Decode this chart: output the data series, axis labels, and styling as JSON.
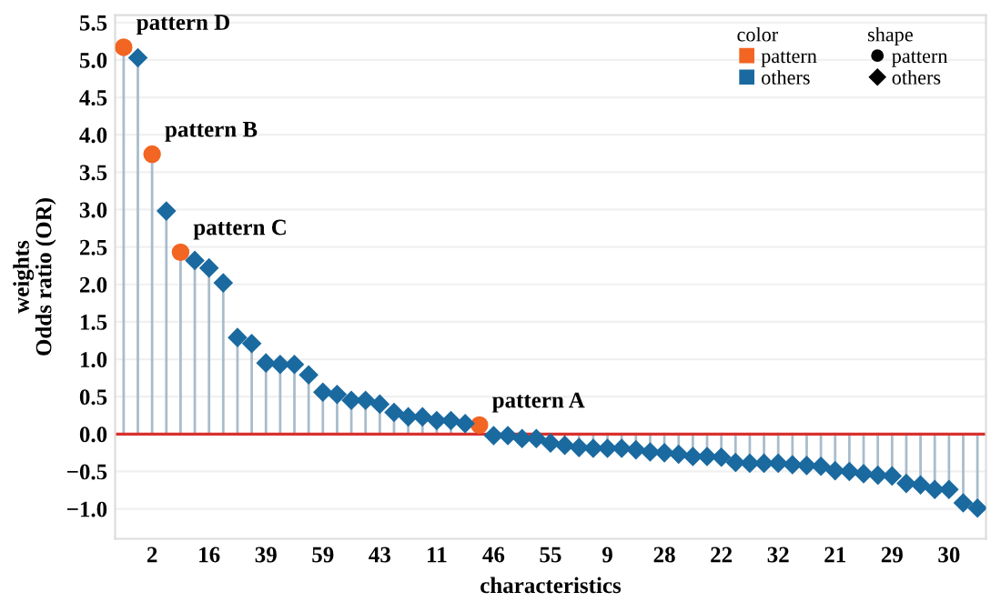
{
  "chart_data": {
    "type": "lollipop",
    "xlabel": "characteristics",
    "ylabel": "weights\nOdds ratio (OR)",
    "legend_title": [
      "color",
      "shape"
    ],
    "legend": "top right",
    "grid": "y",
    "categories": [
      null,
      null,
      "2",
      null,
      null,
      null,
      "16",
      null,
      null,
      null,
      "39",
      null,
      null,
      null,
      "59",
      null,
      null,
      null,
      "43",
      null,
      null,
      null,
      "11",
      null,
      null,
      null,
      "46",
      null,
      null,
      null,
      "55",
      null,
      null,
      null,
      "9",
      null,
      null,
      null,
      "28",
      null,
      null,
      null,
      "22",
      null,
      null,
      null,
      "32",
      null,
      null,
      null,
      "21",
      null,
      null,
      null,
      "29",
      null,
      null,
      null,
      "30",
      null,
      null
    ],
    "ylim": [
      -1.4,
      5.6
    ],
    "yticks": [
      {
        "value": -1,
        "label": "−1.0"
      },
      {
        "value": -0.5,
        "label": "−0.5"
      },
      {
        "value": 0,
        "label": "0.0"
      },
      {
        "value": 0.5,
        "label": "0.5"
      },
      {
        "value": 1,
        "label": "1.0"
      },
      {
        "value": 1.5,
        "label": "1.5"
      },
      {
        "value": 2,
        "label": "2.0"
      },
      {
        "value": 2.5,
        "label": "2.5"
      },
      {
        "value": 3,
        "label": "3.0"
      },
      {
        "value": 3.5,
        "label": "3.5"
      },
      {
        "value": 4,
        "label": "4.0"
      },
      {
        "value": 4.5,
        "label": "4.5"
      },
      {
        "value": 5,
        "label": "5.0"
      },
      {
        "value": 5.5,
        "label": "5.5"
      }
    ],
    "ref_lines": [
      {
        "axis": "y",
        "value": 0,
        "color": "#d9302c"
      }
    ],
    "series": [
      {
        "name": "pattern",
        "color": "#f26522",
        "marker": "circle",
        "values": [
          5.17,
          null,
          3.74,
          null,
          2.43,
          null,
          null,
          null,
          null,
          null,
          null,
          null,
          null,
          null,
          null,
          null,
          null,
          null,
          null,
          null,
          null,
          null,
          null,
          null,
          null,
          0.12,
          null,
          null,
          null,
          null,
          null,
          null,
          null,
          null,
          null,
          null,
          null,
          null,
          null,
          null,
          null,
          null,
          null,
          null,
          null,
          null,
          null,
          null,
          null,
          null,
          null,
          null,
          null,
          null,
          null,
          null,
          null,
          null,
          null,
          null,
          null
        ],
        "value_labels": [
          "pattern D",
          null,
          "pattern B",
          null,
          "pattern C",
          null,
          null,
          null,
          null,
          null,
          null,
          null,
          null,
          null,
          null,
          null,
          null,
          null,
          null,
          null,
          null,
          null,
          null,
          null,
          null,
          "pattern A",
          null,
          null,
          null,
          null,
          null,
          null,
          null,
          null,
          null,
          null,
          null,
          null,
          null,
          null,
          null,
          null,
          null,
          null,
          null,
          null,
          null,
          null,
          null,
          null,
          null,
          null,
          null,
          null,
          null,
          null,
          null,
          null,
          null,
          null,
          null
        ]
      },
      {
        "name": "others",
        "color": "#1a6aa0",
        "marker": "diamond",
        "values": [
          null,
          5.03,
          null,
          2.98,
          null,
          2.32,
          2.22,
          2.02,
          1.29,
          1.21,
          0.95,
          0.93,
          0.93,
          0.79,
          0.56,
          0.53,
          0.45,
          0.45,
          0.4,
          0.29,
          0.23,
          0.23,
          0.18,
          0.18,
          0.14,
          null,
          -0.02,
          -0.02,
          -0.06,
          -0.06,
          -0.12,
          -0.15,
          -0.18,
          -0.19,
          -0.19,
          -0.19,
          -0.21,
          -0.24,
          -0.25,
          -0.27,
          -0.3,
          -0.3,
          -0.31,
          -0.38,
          -0.39,
          -0.39,
          -0.39,
          -0.41,
          -0.42,
          -0.43,
          -0.49,
          -0.5,
          -0.53,
          -0.55,
          -0.56,
          -0.66,
          -0.68,
          -0.74,
          -0.74,
          -0.92,
          -0.99
        ]
      }
    ]
  }
}
